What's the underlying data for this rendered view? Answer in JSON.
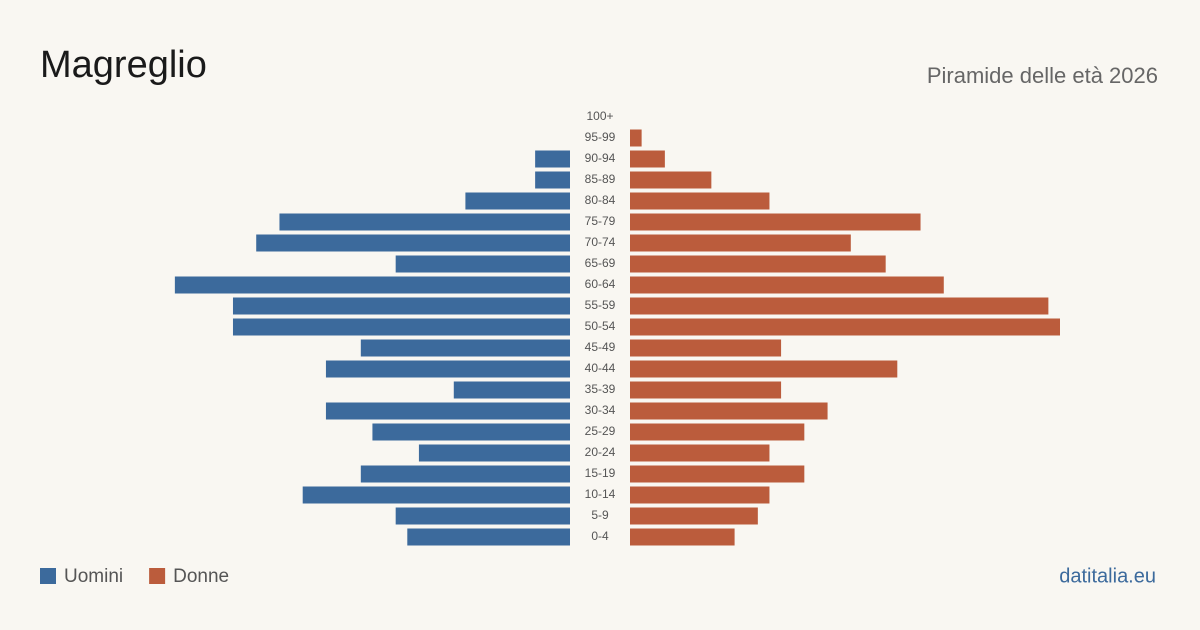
{
  "chart_data": {
    "type": "pyramid",
    "title": "Magreglio",
    "subtitle": "Piramide delle età 2026",
    "source": "datitalia.eu",
    "categories": [
      "100+",
      "95-99",
      "90-94",
      "85-89",
      "80-84",
      "75-79",
      "70-74",
      "65-69",
      "60-64",
      "55-59",
      "50-54",
      "45-49",
      "40-44",
      "35-39",
      "30-34",
      "25-29",
      "20-24",
      "15-19",
      "10-14",
      "5-9",
      "0-4"
    ],
    "series": [
      {
        "name": "Uomini",
        "color": "#3c6a9c",
        "values": [
          0,
          0,
          3,
          3,
          9,
          25,
          27,
          15,
          34,
          29,
          29,
          18,
          21,
          10,
          21,
          17,
          13,
          18,
          23,
          15,
          14
        ]
      },
      {
        "name": "Donne",
        "color": "#bb5c3c",
        "values": [
          0,
          1,
          3,
          7,
          12,
          25,
          19,
          22,
          27,
          36,
          37,
          13,
          23,
          13,
          17,
          15,
          12,
          15,
          12,
          11,
          9
        ]
      }
    ]
  }
}
